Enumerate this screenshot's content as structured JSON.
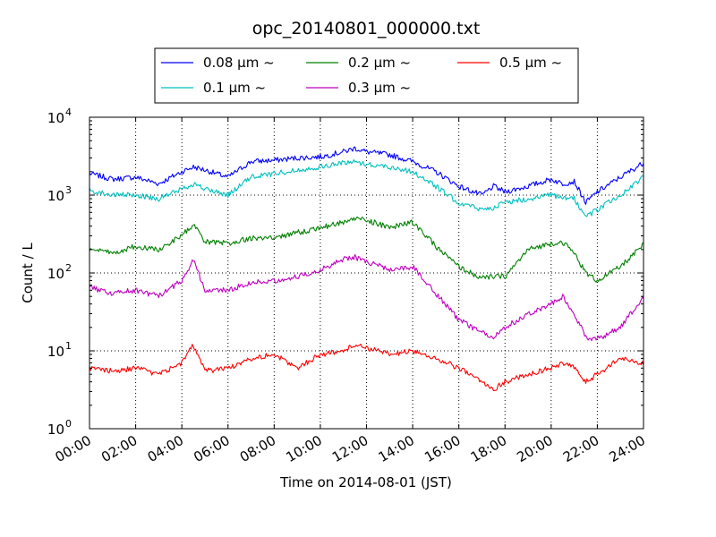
{
  "chart_data": {
    "type": "line",
    "title": "opc_20140801_000000.txt",
    "xlabel": "Time on 2014-08-01 (JST)",
    "ylabel": "Count / L",
    "xlim": [
      "00:00",
      "24:00"
    ],
    "ylim": [
      1,
      10000
    ],
    "yscale": "log",
    "grid": true,
    "legend_position": "top",
    "x_ticks": [
      "00:00",
      "02:00",
      "04:00",
      "06:00",
      "08:00",
      "10:00",
      "12:00",
      "14:00",
      "16:00",
      "18:00",
      "20:00",
      "22:00",
      "24:00"
    ],
    "y_ticks": [
      {
        "base": "10",
        "exp": "0"
      },
      {
        "base": "10",
        "exp": "1"
      },
      {
        "base": "10",
        "exp": "2"
      },
      {
        "base": "10",
        "exp": "3"
      },
      {
        "base": "10",
        "exp": "4"
      }
    ],
    "x": [
      "00:00",
      "01:00",
      "02:00",
      "03:00",
      "04:00",
      "04:30",
      "05:00",
      "06:00",
      "07:00",
      "08:00",
      "09:00",
      "10:00",
      "11:00",
      "11:30",
      "12:00",
      "13:00",
      "14:00",
      "15:00",
      "16:00",
      "17:00",
      "17:30",
      "18:00",
      "19:00",
      "20:00",
      "20:30",
      "21:00",
      "21:30",
      "22:00",
      "23:00",
      "24:00"
    ],
    "series": [
      {
        "name": "0.08 μm ~",
        "color": "#0000ff",
        "values": [
          1900,
          1600,
          1700,
          1400,
          2000,
          2300,
          2100,
          1700,
          2700,
          2800,
          3000,
          3100,
          3600,
          4000,
          3600,
          3300,
          2700,
          2000,
          1300,
          1000,
          1300,
          1100,
          1300,
          1600,
          1400,
          1500,
          800,
          1100,
          1700,
          2600
        ]
      },
      {
        "name": "0.1 μm ~",
        "color": "#00c0c0",
        "values": [
          1150,
          1000,
          1000,
          900,
          1200,
          1400,
          1200,
          1000,
          1700,
          1900,
          2100,
          2300,
          2600,
          2700,
          2500,
          2300,
          2000,
          1300,
          800,
          650,
          700,
          800,
          900,
          1000,
          900,
          900,
          530,
          650,
          1000,
          1700
        ]
      },
      {
        "name": "0.2 μm ~",
        "color": "#008000",
        "values": [
          200,
          180,
          220,
          200,
          300,
          420,
          250,
          240,
          280,
          280,
          330,
          380,
          450,
          500,
          480,
          380,
          450,
          220,
          120,
          85,
          90,
          90,
          200,
          240,
          250,
          180,
          100,
          80,
          120,
          230
        ]
      },
      {
        "name": "0.3 μm ~",
        "color": "#c000c0",
        "values": [
          65,
          55,
          60,
          50,
          80,
          150,
          60,
          60,
          75,
          80,
          90,
          110,
          150,
          160,
          140,
          110,
          120,
          55,
          25,
          17,
          15,
          20,
          30,
          40,
          50,
          30,
          15,
          14,
          20,
          50
        ]
      },
      {
        "name": "0.5 μm ~",
        "color": "#ff0000",
        "values": [
          6,
          5.5,
          6,
          5,
          7,
          12,
          5.5,
          6,
          8,
          9,
          6,
          9,
          10,
          12,
          11,
          9,
          10,
          8,
          6,
          4,
          3.2,
          4,
          5,
          6,
          7,
          6,
          4,
          5,
          8,
          7
        ]
      }
    ]
  }
}
